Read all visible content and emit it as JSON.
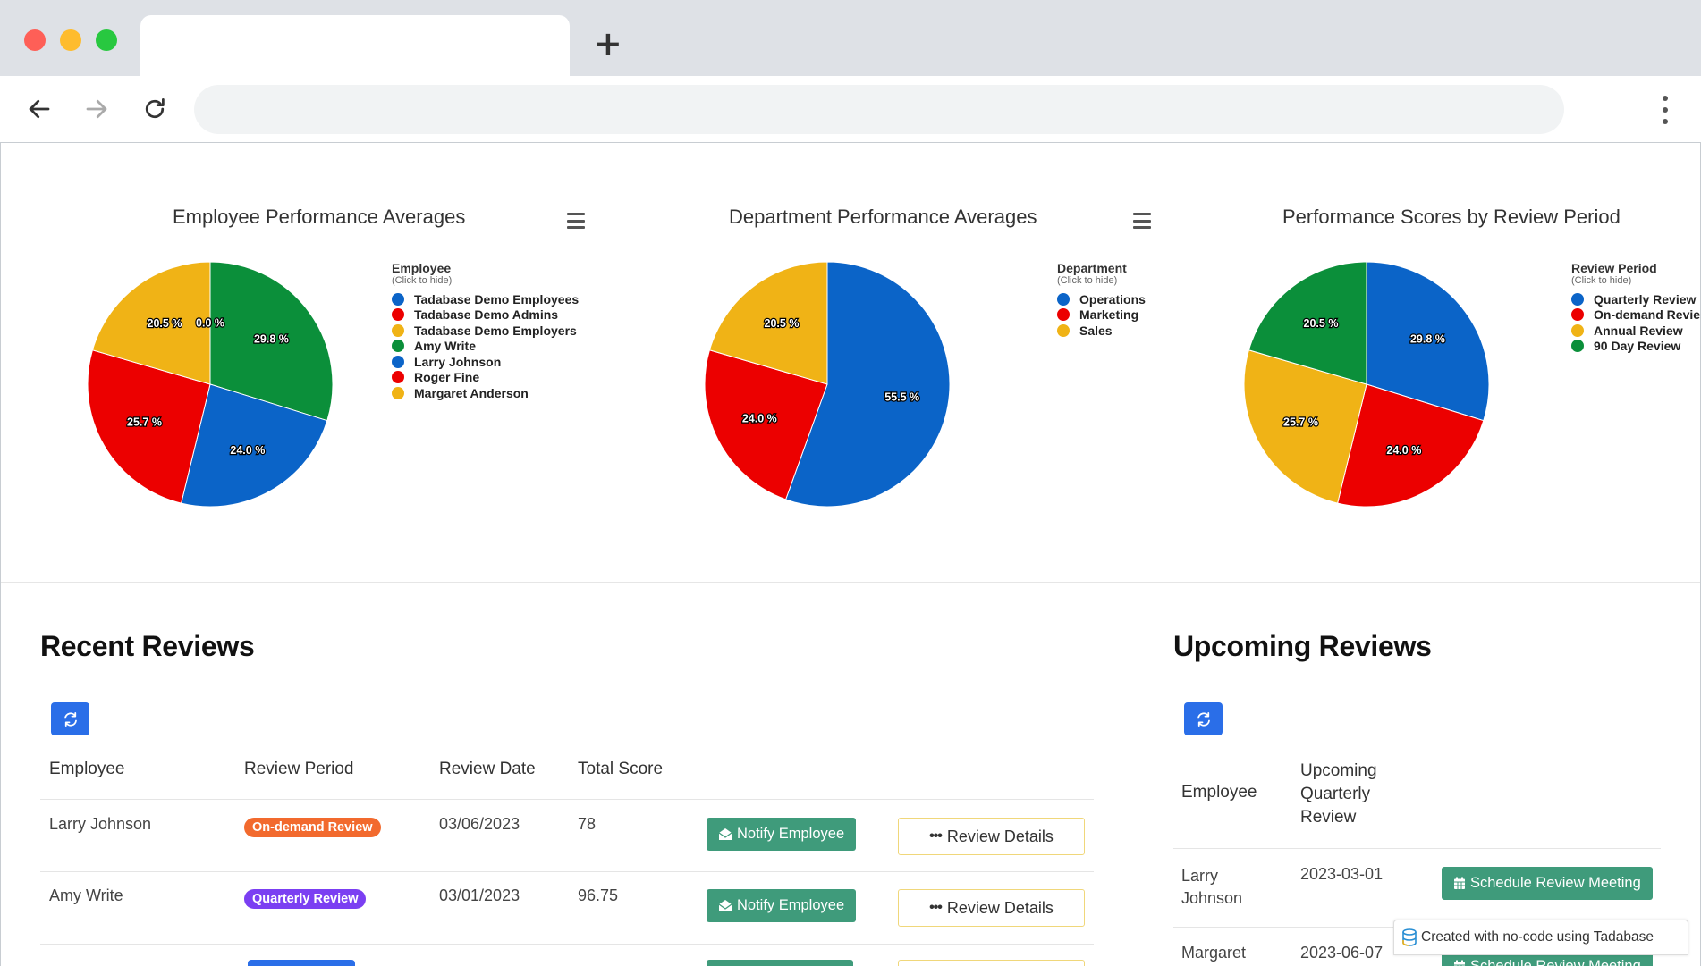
{
  "browser": {
    "new_tab_label": "+"
  },
  "charts": [
    {
      "title": "Employee Performance Averages",
      "legend_title": "Employee",
      "legend_sub": "(Click to hide)",
      "legend": [
        {
          "label": "Tadabase Demo Employees",
          "color": "#0b64c8"
        },
        {
          "label": "Tadabase Demo Admins",
          "color": "#ec0000"
        },
        {
          "label": "Tadabase Demo Employers",
          "color": "#f0b316"
        },
        {
          "label": "Amy Write",
          "color": "#0b8f3a"
        },
        {
          "label": "Larry Johnson",
          "color": "#0b64c8"
        },
        {
          "label": "Roger Fine",
          "color": "#ec0000"
        },
        {
          "label": "Margaret Anderson",
          "color": "#f0b316"
        }
      ]
    },
    {
      "title": "Department Performance Averages",
      "legend_title": "Department",
      "legend_sub": "(Click to hide)",
      "legend": [
        {
          "label": "Operations",
          "color": "#0b64c8"
        },
        {
          "label": "Marketing",
          "color": "#ec0000"
        },
        {
          "label": "Sales",
          "color": "#f0b316"
        }
      ]
    },
    {
      "title": "Performance Scores by Review Period",
      "legend_title": "Review Period",
      "legend_sub": "(Click to hide)",
      "legend": [
        {
          "label": "Quarterly Review",
          "color": "#0b64c8"
        },
        {
          "label": "On-demand Review",
          "color": "#ec0000"
        },
        {
          "label": "Annual Review",
          "color": "#f0b316"
        },
        {
          "label": "90 Day Review",
          "color": "#0b8f3a"
        }
      ]
    }
  ],
  "chart_data": [
    {
      "type": "pie",
      "title": "Employee Performance Averages",
      "categories": [
        "Amy Write",
        "Larry Johnson",
        "Roger Fine",
        "Margaret Anderson",
        "Tadabase Demo Employees"
      ],
      "values": [
        29.8,
        24.0,
        25.7,
        20.5,
        0.0
      ],
      "labels": [
        "29.8 %",
        "24.0 %",
        "25.7 %",
        "20.5 %",
        "0.0 %"
      ],
      "colors": [
        "#0b8f3a",
        "#0b64c8",
        "#ec0000",
        "#f0b316",
        "#0b64c8"
      ],
      "legend_position": "right"
    },
    {
      "type": "pie",
      "title": "Department Performance Averages",
      "categories": [
        "Operations",
        "Marketing",
        "Sales"
      ],
      "values": [
        55.5,
        24.0,
        20.5
      ],
      "labels": [
        "55.5 %",
        "24.0 %",
        "20.5 %"
      ],
      "colors": [
        "#0b64c8",
        "#ec0000",
        "#f0b316"
      ],
      "legend_position": "right"
    },
    {
      "type": "pie",
      "title": "Performance Scores by Review Period",
      "categories": [
        "Quarterly Review",
        "On-demand Review",
        "Annual Review",
        "90 Day Review"
      ],
      "values": [
        29.8,
        24.0,
        25.7,
        20.5
      ],
      "labels": [
        "29.8 %",
        "24.0 %",
        "25.7 %",
        "20.5 %"
      ],
      "colors": [
        "#0b64c8",
        "#ec0000",
        "#f0b316",
        "#0b8f3a"
      ],
      "legend_position": "right"
    }
  ],
  "recent": {
    "title": "Recent Reviews",
    "headers": [
      "Employee",
      "Review Period",
      "Review Date",
      "Total Score"
    ],
    "rows": [
      {
        "employee": "Larry Johnson",
        "period": "On-demand Review",
        "period_color": "#f26a2e",
        "date": "03/06/2023",
        "score": "78"
      },
      {
        "employee": "Amy Write",
        "period": "Quarterly Review",
        "period_color": "#7b3ff2",
        "date": "03/01/2023",
        "score": "96.75"
      }
    ],
    "notify_label": "Notify Employee",
    "details_label": "Review Details"
  },
  "upcoming": {
    "title": "Upcoming Reviews",
    "header_employee": "Employee",
    "header_review": [
      "Upcoming",
      "Quarterly",
      "Review"
    ],
    "rows": [
      {
        "employee_line1": "Larry",
        "employee_line2": "Johnson",
        "date": "2023-03-01"
      },
      {
        "employee_line1": "Margaret",
        "employee_line2": "",
        "date": "2023-06-07"
      }
    ],
    "schedule_label": "Schedule Review Meeting"
  },
  "footer": {
    "tadabase_label": "Created with no-code using Tadabase"
  },
  "colors": {
    "accent_blue": "#2a6ee8",
    "action_green": "#3f9b7b",
    "details_border": "#f0d77a"
  }
}
